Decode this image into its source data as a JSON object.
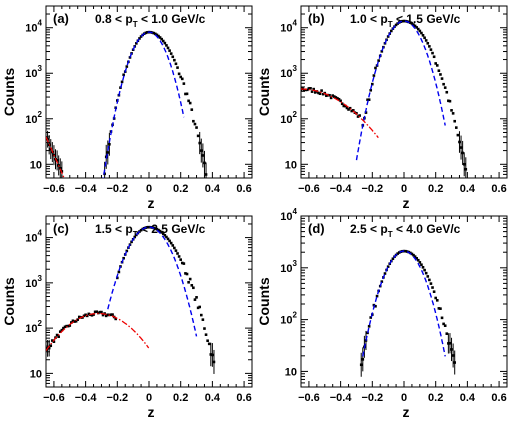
{
  "chart_data": [
    {
      "panel": "(a)",
      "pt_min": "0.8",
      "pt_max": "1.0",
      "pt_var": "p",
      "pt_sub": "T",
      "unit": "GeV/c",
      "type": "scatter",
      "xlabel": "z",
      "ylabel": "Counts",
      "xlim": [
        -0.65,
        0.65
      ],
      "ylim": [
        5,
        30000
      ],
      "yscale": "log",
      "xticks": [
        "−0.6",
        "−0.4",
        "−0.2",
        "0",
        "0.2",
        "0.4",
        "0.6"
      ],
      "ytick_base": "10",
      "ytick_exponents": [
        "",
        "2",
        "3",
        "4"
      ],
      "fit": {
        "amp": 8000,
        "mu": 0.0,
        "sigma": 0.075,
        "range": [
          -0.3,
          0.22
        ]
      },
      "bkg": {
        "amp": 40,
        "x0": -0.65,
        "scale": 0.055,
        "range": [
          -0.65,
          -0.49
        ]
      },
      "data": {
        "amp": 8000,
        "mu": 0.0,
        "sigma_l": 0.075,
        "sigma_r": 0.095,
        "range": [
          -0.28,
          0.37
        ]
      },
      "data_tail": {
        "amp": 40,
        "x0": -0.65,
        "scale": 0.055,
        "range": [
          -0.65,
          -0.51
        ]
      }
    },
    {
      "panel": "(b)",
      "pt_min": "1.0",
      "pt_max": "1.5",
      "pt_var": "p",
      "pt_sub": "T",
      "unit": "GeV/c",
      "type": "scatter",
      "xlabel": "z",
      "ylabel": "Counts",
      "xlim": [
        -0.65,
        0.65
      ],
      "ylim": [
        5,
        30000
      ],
      "yscale": "log",
      "xticks": [
        "−0.6",
        "−0.4",
        "−0.2",
        "0",
        "0.2",
        "0.4",
        "0.6"
      ],
      "ytick_base": "10",
      "ytick_exponents": [
        "",
        "2",
        "3",
        "4"
      ],
      "fit": {
        "amp": 14000,
        "mu": 0.0,
        "sigma": 0.08,
        "range": [
          -0.3,
          0.26
        ]
      },
      "bkg": {
        "amp": 450,
        "mu": -0.65,
        "sigma": 0.22,
        "range": [
          -0.65,
          -0.16
        ]
      },
      "data": {
        "amp": 14000,
        "mu": 0.0,
        "sigma_l": 0.08,
        "sigma_r": 0.1,
        "range": [
          -0.26,
          0.4
        ]
      },
      "data_tail": {
        "amp": 450,
        "mu": -0.65,
        "sigma": 0.22,
        "range": [
          -0.65,
          -0.27
        ]
      }
    },
    {
      "panel": "(c)",
      "pt_min": "1.5",
      "pt_max": "2.5",
      "pt_var": "p",
      "pt_sub": "T",
      "unit": "GeV/c",
      "type": "scatter",
      "xlabel": "z",
      "ylabel": "Counts",
      "xlim": [
        -0.65,
        0.65
      ],
      "ylim": [
        5,
        30000
      ],
      "yscale": "log",
      "xticks": [
        "−0.6",
        "−0.4",
        "−0.2",
        "0",
        "0.2",
        "0.4",
        "0.6"
      ],
      "ytick_base": "10",
      "ytick_exponents": [
        "",
        "2",
        "3",
        "4"
      ],
      "fit": {
        "amp": 17000,
        "mu": 0.0,
        "sigma": 0.09,
        "range": [
          -0.26,
          0.3
        ]
      },
      "bkg": {
        "amp": 210,
        "mu": -0.32,
        "sigma": 0.17,
        "range": [
          -0.65,
          0.0
        ]
      },
      "data": {
        "amp": 17000,
        "mu": 0.0,
        "sigma_l": 0.09,
        "sigma_r": 0.11,
        "range": [
          -0.2,
          0.42
        ]
      },
      "data_tail": {
        "amp": 210,
        "mu": -0.32,
        "sigma": 0.17,
        "range": [
          -0.65,
          -0.2
        ]
      }
    },
    {
      "panel": "(d)",
      "pt_min": "2.5",
      "pt_max": "4.0",
      "pt_var": "p",
      "pt_sub": "T",
      "unit": "GeV/c",
      "type": "scatter",
      "xlabel": "z",
      "ylabel": "Counts",
      "xlim": [
        -0.65,
        0.65
      ],
      "ylim": [
        5,
        10000
      ],
      "yscale": "log",
      "xticks": [
        "−0.6",
        "−0.4",
        "−0.2",
        "0",
        "0.2",
        "0.4",
        "0.6"
      ],
      "ytick_base": "10",
      "ytick_exponents": [
        "",
        "2",
        "3",
        "4"
      ],
      "fit": {
        "amp": 2100,
        "mu": 0.0,
        "sigma": 0.085,
        "range": [
          -0.26,
          0.26
        ]
      },
      "bkg": {
        "amp": 0,
        "mu": 0,
        "sigma": 1,
        "range": [
          0,
          0
        ]
      },
      "data": {
        "amp": 2100,
        "mu": 0.0,
        "sigma_l": 0.085,
        "sigma_r": 0.1,
        "range": [
          -0.27,
          0.33
        ]
      },
      "data_tail": {
        "amp": 0,
        "mu": 0,
        "sigma": 1,
        "range": [
          0,
          0
        ]
      }
    }
  ],
  "colors": {
    "fit": "#0000ee",
    "bkg": "#ee0000",
    "data": "#000000"
  }
}
